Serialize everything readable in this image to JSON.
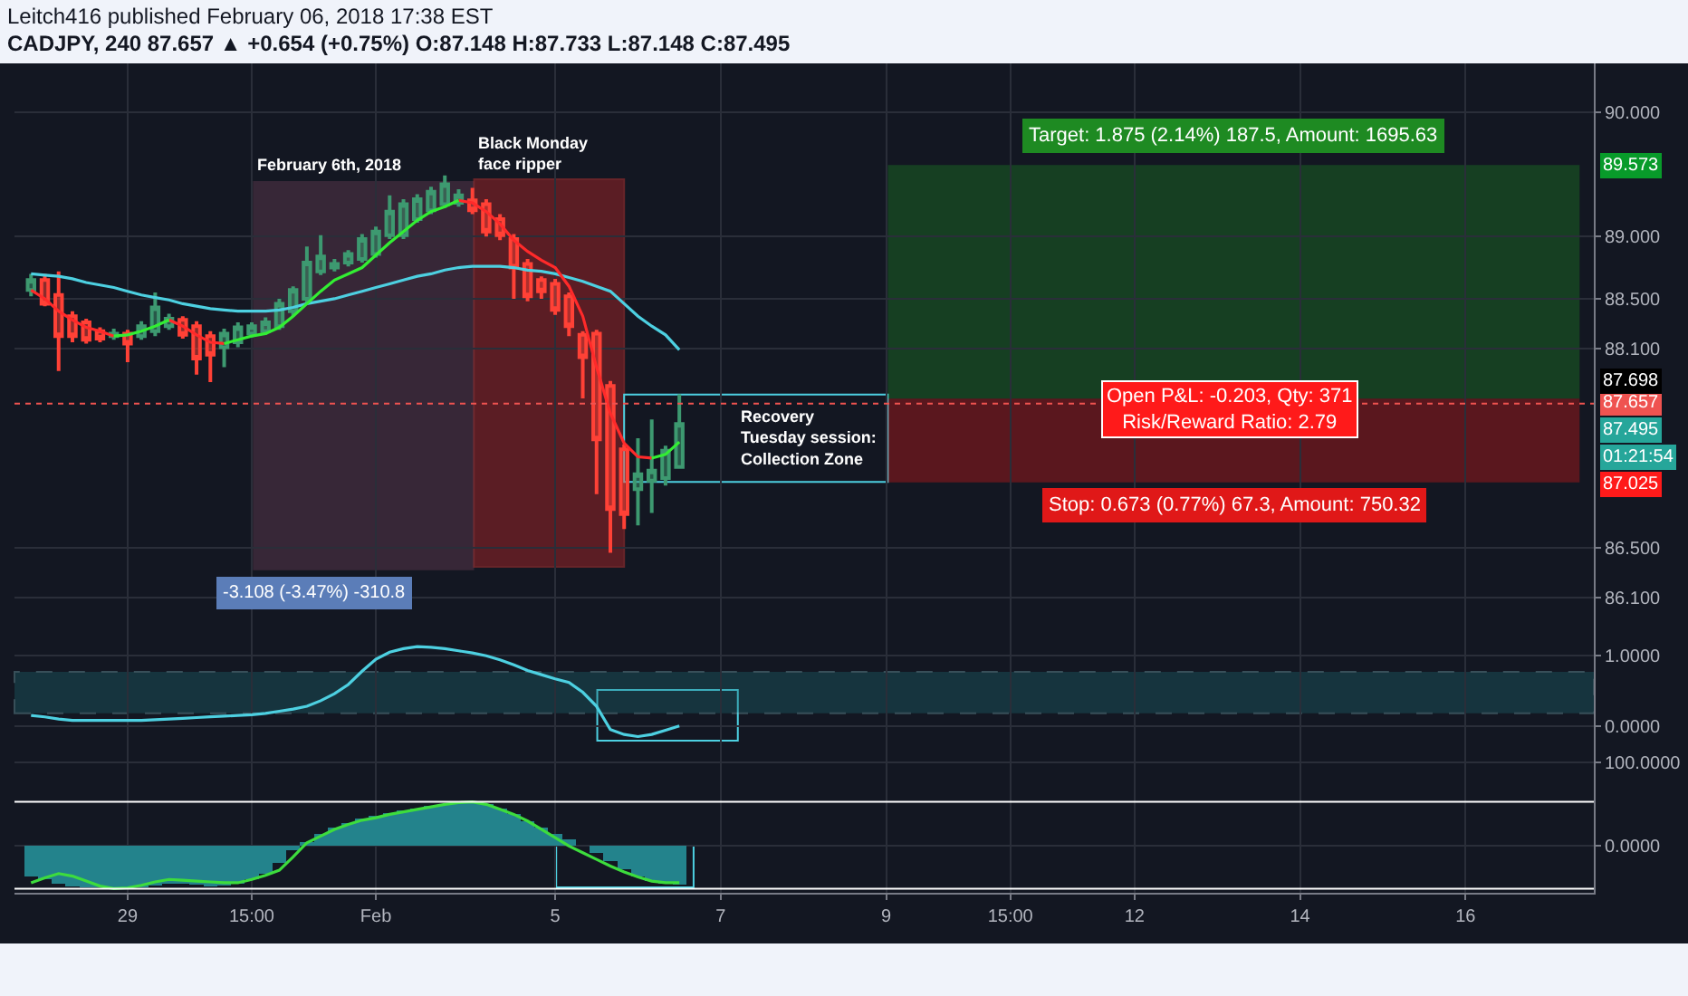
{
  "chart_data": [
    {
      "type": "candlestick",
      "title": "CADJPY, 240 87.657 ▲ +0.654 (+0.75%) O:87.148 H:87.733 L:87.148 C:87.495",
      "subtitle": "Leitch416 published February 06, 2018 17:38 EST",
      "categories": [
        null,
        null,
        null,
        null,
        null,
        null,
        null,
        null,
        null,
        null,
        null,
        null,
        null,
        null,
        null,
        null,
        null,
        null,
        null,
        null,
        null,
        null,
        null,
        null,
        null,
        null,
        null,
        null,
        null,
        null,
        null,
        null,
        null,
        null,
        null,
        null,
        null,
        null,
        null,
        null,
        null,
        null,
        null,
        null,
        null,
        null,
        null,
        null,
        null,
        null,
        null,
        null,
        null,
        null,
        null,
        null,
        null,
        null,
        null,
        null,
        null,
        null,
        null,
        null,
        null,
        null,
        null,
        null,
        null,
        null,
        null,
        null,
        null,
        null,
        null,
        null,
        null,
        null,
        null,
        null,
        null,
        null,
        null,
        null,
        null,
        null,
        null,
        null,
        null,
        null,
        null,
        null,
        null,
        null,
        null,
        null,
        null,
        null,
        null,
        null,
        null,
        null,
        null,
        null,
        null,
        null,
        null,
        null,
        null,
        null,
        null,
        null,
        null,
        null
      ],
      "ohlc": [
        [
          88.57,
          88.7,
          88.52,
          88.65
        ],
        [
          88.65,
          88.7,
          88.44,
          88.46
        ],
        [
          88.53,
          88.72,
          87.92,
          88.2
        ],
        [
          88.36,
          88.4,
          88.15,
          88.2
        ],
        [
          88.31,
          88.34,
          88.14,
          88.17
        ],
        [
          88.24,
          88.27,
          88.15,
          88.18
        ],
        [
          88.2,
          88.26,
          88.17,
          88.22
        ],
        [
          88.22,
          88.25,
          87.99,
          88.14
        ],
        [
          88.2,
          88.32,
          88.17,
          88.28
        ],
        [
          88.24,
          88.55,
          88.2,
          88.43
        ],
        [
          88.28,
          88.38,
          88.25,
          88.34
        ],
        [
          88.33,
          88.36,
          88.18,
          88.21
        ],
        [
          88.28,
          88.32,
          87.89,
          88.02
        ],
        [
          88.2,
          88.24,
          87.83,
          88.05
        ],
        [
          88.11,
          88.26,
          87.95,
          88.22
        ],
        [
          88.15,
          88.31,
          88.11,
          88.27
        ],
        [
          88.22,
          88.31,
          88.19,
          88.28
        ],
        [
          88.24,
          88.35,
          88.21,
          88.31
        ],
        [
          88.28,
          88.5,
          88.25,
          88.46
        ],
        [
          88.4,
          88.6,
          88.36,
          88.57
        ],
        [
          88.5,
          88.92,
          88.47,
          88.79
        ],
        [
          88.72,
          89.01,
          88.69,
          88.84
        ],
        [
          88.75,
          88.82,
          88.72,
          88.78
        ],
        [
          88.79,
          88.89,
          88.76,
          88.86
        ],
        [
          88.82,
          89.02,
          88.79,
          88.98
        ],
        [
          88.86,
          89.08,
          88.83,
          89.04
        ],
        [
          89.01,
          89.33,
          88.98,
          89.2
        ],
        [
          89.01,
          89.3,
          88.98,
          89.26
        ],
        [
          89.14,
          89.34,
          89.11,
          89.3
        ],
        [
          89.21,
          89.4,
          89.18,
          89.36
        ],
        [
          89.26,
          89.49,
          89.23,
          89.42
        ],
        [
          89.27,
          89.38,
          89.24,
          89.33
        ],
        [
          89.29,
          89.39,
          89.18,
          89.21
        ],
        [
          89.26,
          89.3,
          89.0,
          89.04
        ],
        [
          89.14,
          89.18,
          88.97,
          89.01
        ],
        [
          88.98,
          89.02,
          88.5,
          88.75
        ],
        [
          88.78,
          88.82,
          88.48,
          88.52
        ],
        [
          88.65,
          88.68,
          88.5,
          88.56
        ],
        [
          88.62,
          88.66,
          88.37,
          88.41
        ],
        [
          88.52,
          88.55,
          88.2,
          88.28
        ],
        [
          88.21,
          88.24,
          87.7,
          88.03
        ],
        [
          88.22,
          88.25,
          86.93,
          87.37
        ],
        [
          87.8,
          87.84,
          86.46,
          86.81
        ],
        [
          87.29,
          87.33,
          86.65,
          86.77
        ],
        [
          86.97,
          87.38,
          86.68,
          87.09
        ],
        [
          87.04,
          87.53,
          86.78,
          87.12
        ],
        [
          87.06,
          87.32,
          87.0,
          87.28
        ],
        [
          87.148,
          87.733,
          87.148,
          87.495
        ],
        null,
        null,
        null,
        null,
        null,
        null,
        null,
        null,
        null,
        null,
        null,
        null,
        null,
        null,
        null,
        null,
        null,
        null,
        null,
        null,
        null,
        null,
        null,
        null,
        null,
        null,
        null,
        null,
        null,
        null,
        null,
        null,
        null,
        null,
        null,
        null,
        null,
        null,
        null,
        null,
        null,
        null,
        null,
        null,
        null,
        null,
        null,
        null,
        null,
        null,
        null,
        null,
        null,
        null,
        null,
        null,
        null,
        null,
        null,
        null,
        null,
        null,
        null,
        null,
        null,
        null
      ],
      "series": [
        {
          "type": "line",
          "color": "#4dd0e1",
          "values": [
            88.7,
            88.69,
            88.68,
            88.66,
            88.63,
            88.61,
            88.59,
            88.56,
            88.53,
            88.51,
            88.49,
            88.46,
            88.44,
            88.42,
            88.41,
            88.4,
            88.4,
            88.4,
            88.41,
            88.43,
            88.46,
            88.48,
            88.5,
            88.53,
            88.56,
            88.59,
            88.62,
            88.65,
            88.68,
            88.7,
            88.73,
            88.75,
            88.76,
            88.76,
            88.76,
            88.75,
            88.73,
            88.72,
            88.7,
            88.67,
            88.64,
            88.6,
            88.56,
            88.46,
            88.36,
            88.28,
            88.21,
            88.09,
            null,
            null,
            null,
            null,
            null,
            null,
            null,
            null,
            null,
            null,
            null,
            null,
            null,
            null,
            null,
            null,
            null,
            null,
            null,
            null,
            null,
            null,
            null,
            null,
            null,
            null,
            null,
            null,
            null,
            null,
            null,
            null,
            null,
            null,
            null,
            null,
            null,
            null,
            null,
            null,
            null,
            null,
            null,
            null,
            null,
            null,
            null,
            null,
            null,
            null,
            null,
            null,
            null,
            null,
            null,
            null,
            null,
            null,
            null,
            null,
            null,
            null,
            null,
            null,
            null,
            null
          ]
        },
        {
          "type": "line",
          "color": "#ff2a2a",
          "values": [
            88.57,
            88.5,
            88.4,
            88.33,
            88.27,
            88.24,
            88.2,
            null,
            null,
            null,
            88.33,
            88.28,
            88.21,
            88.15,
            88.14,
            null,
            null,
            null,
            null,
            null,
            null,
            null,
            null,
            null,
            null,
            null,
            null,
            null,
            null,
            null,
            null,
            89.29,
            89.27,
            89.2,
            89.1,
            88.97,
            88.88,
            88.81,
            88.75,
            88.6,
            88.36,
            87.95,
            87.58,
            87.34,
            87.23,
            87.22,
            null,
            null,
            null,
            null,
            null,
            null,
            null,
            null,
            null,
            null,
            null,
            null,
            null,
            null,
            null,
            null,
            null,
            null,
            null,
            null,
            null,
            null,
            null,
            null,
            null,
            null,
            null,
            null,
            null,
            null,
            null,
            null,
            null,
            null,
            null,
            null,
            null,
            null,
            null,
            null,
            null,
            null,
            null,
            null,
            null,
            null,
            null,
            null,
            null,
            null,
            null,
            null,
            null,
            null,
            null,
            null,
            null,
            null,
            null,
            null,
            null,
            null,
            null,
            null,
            null,
            null,
            null,
            null
          ]
        },
        {
          "type": "line",
          "color": "#33ee33",
          "values": [
            null,
            null,
            null,
            null,
            null,
            null,
            88.2,
            88.21,
            88.24,
            88.28,
            88.33,
            null,
            null,
            null,
            88.14,
            88.17,
            88.2,
            88.22,
            88.27,
            88.36,
            88.46,
            88.56,
            88.65,
            88.7,
            88.75,
            88.85,
            88.95,
            89.04,
            89.13,
            89.2,
            89.24,
            89.29,
            null,
            null,
            null,
            null,
            null,
            null,
            null,
            null,
            null,
            null,
            null,
            null,
            null,
            87.22,
            87.25,
            87.35,
            null,
            null,
            null,
            null,
            null,
            null,
            null,
            null,
            null,
            null,
            null,
            null,
            null,
            null,
            null,
            null,
            null,
            null,
            null,
            null,
            null,
            null,
            null,
            null,
            null,
            null,
            null,
            null,
            null,
            null,
            null,
            null,
            null,
            null,
            null,
            null,
            null,
            null,
            null,
            null,
            null,
            null,
            null,
            null,
            null,
            null,
            null,
            null,
            null,
            null,
            null,
            null,
            null,
            null,
            null,
            null,
            null,
            null,
            null,
            null,
            null,
            null,
            null,
            null,
            null,
            null
          ]
        }
      ],
      "ylim": [
        85.78,
        90.39
      ],
      "yticks": [
        {
          "value": 90,
          "label": "90.000"
        },
        {
          "value": 89,
          "label": "89.000"
        },
        {
          "value": 88.5,
          "label": "88.500"
        },
        {
          "value": 88.1,
          "label": "88.100"
        },
        {
          "value": 86.5,
          "label": "86.500"
        },
        {
          "value": 86.1,
          "label": "86.100"
        }
      ],
      "grid": true,
      "tick_labels": "y",
      "bands": [
        {
          "axis": "y",
          "from": 87.698,
          "to": 89.573,
          "label": "Target: 1.875 (2.14%) 187.5, Amount: 1695.63",
          "color": "#1e8a22"
        },
        {
          "axis": "y",
          "from": 87.025,
          "to": 87.698,
          "label": "Stop: 0.673 (0.77%) 67.3, Amount: 750.32",
          "color": "#e01818"
        }
      ],
      "ref_lines": [
        {
          "axis": "y",
          "value": 87.657,
          "label": "87.657",
          "color": "#ef5350",
          "line_style": "dotted"
        }
      ],
      "annotations": [
        "-3.108 (-3.47%) -310.8",
        "Recovery\nTuesday session:\nCollection Zone",
        "Open P&L: -0.203, Qty: 371\nRisk/Reward Ratio: 2.79",
        "01:21:54",
        "89.573",
        "87.698",
        "87.495",
        "87.025",
        "February 6th, 2018",
        "Black Monday\nface ripper"
      ]
    },
    {
      "type": "line",
      "categories": [
        null,
        null,
        null,
        null,
        null,
        null,
        null,
        null,
        null,
        null,
        null,
        null,
        null,
        null,
        null,
        null,
        null,
        null,
        null,
        null,
        null,
        null,
        null,
        null,
        null,
        null,
        null,
        null,
        null,
        null,
        null,
        null,
        null,
        null,
        null,
        null,
        null,
        null,
        null,
        null,
        null,
        null,
        null,
        null,
        null,
        null,
        null,
        null,
        null,
        null,
        null,
        null,
        null,
        null,
        null,
        null,
        null,
        null,
        null,
        null,
        null,
        null,
        null,
        null,
        null,
        null,
        null,
        null,
        null,
        null,
        null,
        null,
        null,
        null,
        null,
        null,
        null,
        null,
        null,
        null,
        null,
        null,
        null,
        null,
        null,
        null,
        null,
        null,
        null,
        null,
        null,
        null,
        null,
        null,
        null,
        null,
        null,
        null,
        null,
        null,
        null,
        null,
        null,
        null,
        null,
        null,
        null,
        null,
        null,
        null,
        null,
        null,
        null,
        null
      ],
      "series": [
        {
          "color": "#4dd0e1",
          "values": [
            0.15,
            0.13,
            0.1,
            0.08,
            0.08,
            0.08,
            0.08,
            0.08,
            0.08,
            0.09,
            0.1,
            0.11,
            0.12,
            0.13,
            0.14,
            0.15,
            0.16,
            0.18,
            0.21,
            0.24,
            0.28,
            0.36,
            0.46,
            0.59,
            0.78,
            0.95,
            1.05,
            1.1,
            1.13,
            1.12,
            1.1,
            1.07,
            1.04,
            1.0,
            0.94,
            0.87,
            0.79,
            0.73,
            0.67,
            0.62,
            0.48,
            0.28,
            -0.05,
            -0.12,
            -0.15,
            -0.12,
            -0.06,
            0.0,
            null,
            null,
            null,
            null,
            null,
            null,
            null,
            null,
            null,
            null,
            null,
            null,
            null,
            null,
            null,
            null,
            null,
            null,
            null,
            null,
            null,
            null,
            null,
            null,
            null,
            null,
            null,
            null,
            null,
            null,
            null,
            null,
            null,
            null,
            null,
            null,
            null,
            null,
            null,
            null,
            null,
            null,
            null,
            null,
            null,
            null,
            null,
            null,
            null,
            null,
            null,
            null,
            null,
            null,
            null,
            null,
            null,
            null,
            null,
            null,
            null,
            null,
            null,
            null,
            null,
            null
          ]
        }
      ],
      "ylim": [
        -0.26,
        1.26
      ],
      "yticks": [
        {
          "value": 1,
          "label": "1.0000"
        },
        {
          "value": 0,
          "label": "0.0000"
        }
      ],
      "bands": [
        {
          "axis": "y",
          "from": 0.18,
          "to": 0.77,
          "color": "#1e6b73"
        }
      ],
      "grid": true,
      "tick_labels": "y"
    },
    {
      "type": "bar",
      "categories": [
        null,
        null,
        null,
        null,
        null,
        null,
        null,
        "29",
        null,
        null,
        null,
        null,
        null,
        null,
        null,
        null,
        "15:00",
        null,
        null,
        null,
        null,
        null,
        null,
        null,
        null,
        "Feb",
        null,
        null,
        null,
        null,
        null,
        null,
        null,
        null,
        null,
        null,
        null,
        null,
        "5",
        null,
        null,
        null,
        null,
        null,
        null,
        null,
        null,
        null,
        null,
        null,
        "7",
        null,
        null,
        null,
        null,
        null,
        null,
        null,
        null,
        null,
        null,
        null,
        "9",
        null,
        null,
        null,
        null,
        null,
        null,
        null,
        null,
        "15:00",
        null,
        null,
        null,
        null,
        null,
        null,
        null,
        null,
        "12",
        null,
        null,
        null,
        null,
        null,
        null,
        null,
        null,
        null,
        null,
        null,
        "14",
        null,
        null,
        null,
        null,
        null,
        null,
        null,
        null,
        null,
        null,
        null,
        "16",
        null,
        null,
        null,
        null,
        null,
        null,
        null,
        null,
        null
      ],
      "series": [
        {
          "type": "bar",
          "color": "#23838c",
          "values": [
            -36,
            -40,
            -45,
            -48,
            -50,
            -50,
            -50,
            -50,
            -49,
            -47,
            -45,
            -45,
            -46,
            -48,
            -47,
            -45,
            -40,
            -33,
            -20,
            -5,
            5,
            15,
            22,
            28,
            33,
            36,
            40,
            43,
            45,
            48,
            50,
            51,
            52,
            50,
            45,
            38,
            30,
            22,
            15,
            8,
            0,
            -8,
            -18,
            -28,
            -36,
            -42,
            -45,
            -46,
            null,
            null,
            null,
            null,
            null,
            null,
            null,
            null,
            null,
            null,
            null,
            null,
            null,
            null,
            null,
            null,
            null,
            null,
            null,
            null,
            null,
            null,
            null,
            null,
            null,
            null,
            null,
            null,
            null,
            null,
            null,
            null,
            null,
            null,
            null,
            null,
            null,
            null,
            null,
            null,
            null,
            null,
            null,
            null,
            null,
            null,
            null,
            null,
            null,
            null,
            null,
            null,
            null,
            null,
            null,
            null,
            null,
            null,
            null,
            null,
            null,
            null,
            null,
            null,
            null,
            null
          ]
        },
        {
          "type": "line",
          "color": "#3ddc3d",
          "values": [
            -44,
            -38,
            -33,
            -36,
            -42,
            -48,
            -51,
            -50,
            -47,
            -43,
            -40,
            -41,
            -42,
            -43,
            -44,
            -44,
            -40,
            -35,
            -29,
            -13,
            4,
            12,
            20,
            26,
            31,
            34,
            38,
            41,
            44,
            47,
            50,
            52,
            53,
            50,
            44,
            38,
            30,
            20,
            10,
            0,
            -8,
            -16,
            -24,
            -31,
            -37,
            -42,
            -44,
            -44,
            null,
            null,
            null,
            null,
            null,
            null,
            null,
            null,
            null,
            null,
            null,
            null,
            null,
            null,
            null,
            null,
            null,
            null,
            null,
            null,
            null,
            null,
            null,
            null,
            null,
            null,
            null,
            null,
            null,
            null,
            null,
            null,
            null,
            null,
            null,
            null,
            null,
            null,
            null,
            null,
            null,
            null,
            null,
            null,
            null,
            null,
            null,
            null,
            null,
            null,
            null,
            null,
            null,
            null,
            null,
            null,
            null,
            null,
            null,
            null,
            null,
            null,
            null,
            null,
            null,
            null
          ]
        }
      ],
      "ylim": [
        -56,
        122
      ],
      "yticks": [
        {
          "value": 100,
          "label": "100.0000"
        },
        {
          "value": 0,
          "label": "0.0000"
        }
      ],
      "ref_lines": [
        {
          "axis": "y",
          "value": 53,
          "color": "#ffffff"
        },
        {
          "axis": "y",
          "value": -51,
          "color": "#ffffff"
        }
      ],
      "grid": true
    }
  ]
}
